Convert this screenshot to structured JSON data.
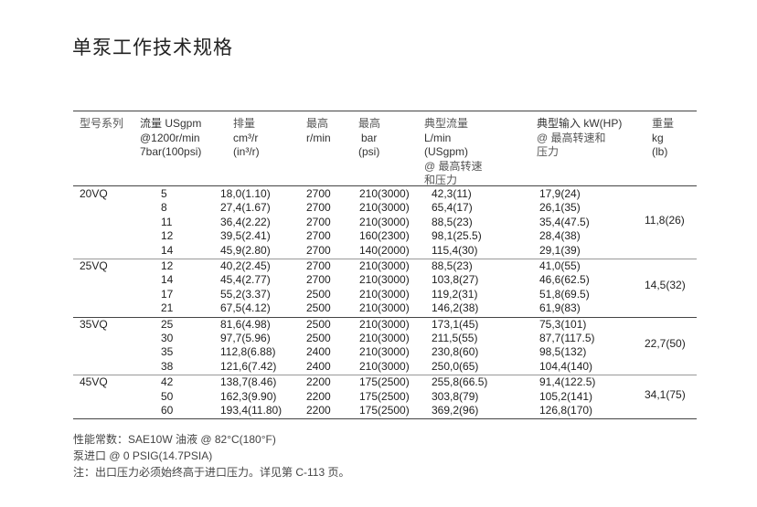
{
  "title": "单泵工作技术规格",
  "headers": {
    "model": "型号系列",
    "flow": [
      "流量 USgpm",
      "@1200r/min",
      "7bar(100psi)"
    ],
    "displacement": [
      "排量",
      "cm³/r",
      "(in³/r)"
    ],
    "speed": [
      "最高",
      "r/min"
    ],
    "pressure": [
      "最高",
      "bar",
      "(psi)"
    ],
    "typical_flow": [
      "典型流量",
      "L/min",
      "(USgpm)",
      "@ 最高转速",
      "和压力"
    ],
    "input": [
      "典型输入 kW(HP)",
      "@ 最高转速和",
      "压力"
    ],
    "weight": [
      "重量",
      "kg",
      "(lb)"
    ]
  },
  "groups": [
    {
      "model": "20VQ",
      "weight": "11,8(26)",
      "rows": [
        [
          "5",
          "18,0(1.10)",
          "2700",
          "210(3000)",
          "42,3(11)",
          "17,9(24)"
        ],
        [
          "8",
          "27,4(1.67)",
          "2700",
          "210(3000)",
          "65,4(17)",
          "26,1(35)"
        ],
        [
          "11",
          "36,4(2.22)",
          "2700",
          "210(3000)",
          "88,5(23)",
          "35,4(47.5)"
        ],
        [
          "12",
          "39,5(2.41)",
          "2700",
          "160(2300)",
          "98,1(25.5)",
          "28,4(38)"
        ],
        [
          "14",
          "45,9(2.80)",
          "2700",
          "140(2000)",
          "115,4(30)",
          "29,1(39)"
        ]
      ]
    },
    {
      "model": "25VQ",
      "weight": "14,5(32)",
      "rows": [
        [
          "12",
          "40,2(2.45)",
          "2700",
          "210(3000)",
          "88,5(23)",
          "41,0(55)"
        ],
        [
          "14",
          "45,4(2.77)",
          "2700",
          "210(3000)",
          "103,8(27)",
          "46,6(62.5)"
        ],
        [
          "17",
          "55,2(3.37)",
          "2500",
          "210(3000)",
          "119,2(31)",
          "51,8(69.5)"
        ],
        [
          "21",
          "67,5(4.12)",
          "2500",
          "210(3000)",
          "146,2(38)",
          "61,9(83)"
        ]
      ]
    },
    {
      "model": "35VQ",
      "weight": "22,7(50)",
      "rows": [
        [
          "25",
          "81,6(4.98)",
          "2500",
          "210(3000)",
          "173,1(45)",
          "75,3(101)"
        ],
        [
          "30",
          "97,7(5.96)",
          "2500",
          "210(3000)",
          "211,5(55)",
          "87,7(117.5)"
        ],
        [
          "35",
          "112,8(6.88)",
          "2400",
          "210(3000)",
          "230,8(60)",
          "98,5(132)"
        ],
        [
          "38",
          "121,6(7.42)",
          "2400",
          "210(3000)",
          "250,0(65)",
          "104,4(140)"
        ]
      ]
    },
    {
      "model": "45VQ",
      "weight": "34,1(75)",
      "rows": [
        [
          "42",
          "138,7(8.46)",
          "2200",
          "175(2500)",
          "255,8(66.5)",
          "91,4(122.5)"
        ],
        [
          "50",
          "162,3(9.90)",
          "2200",
          "175(2500)",
          "303,8(79)",
          "105,2(141)"
        ],
        [
          "60",
          "193,4(11.80)",
          "2200",
          "175(2500)",
          "369,2(96)",
          "126,8(170)"
        ]
      ]
    }
  ],
  "notes": [
    "性能常数：SAE10W 油液 @ 82°C(180°F)",
    "泵进口 @ 0 PSIG(14.7PSIA)",
    "注：出口压力必须始终高于进口压力。详见第 C-113 页。"
  ]
}
